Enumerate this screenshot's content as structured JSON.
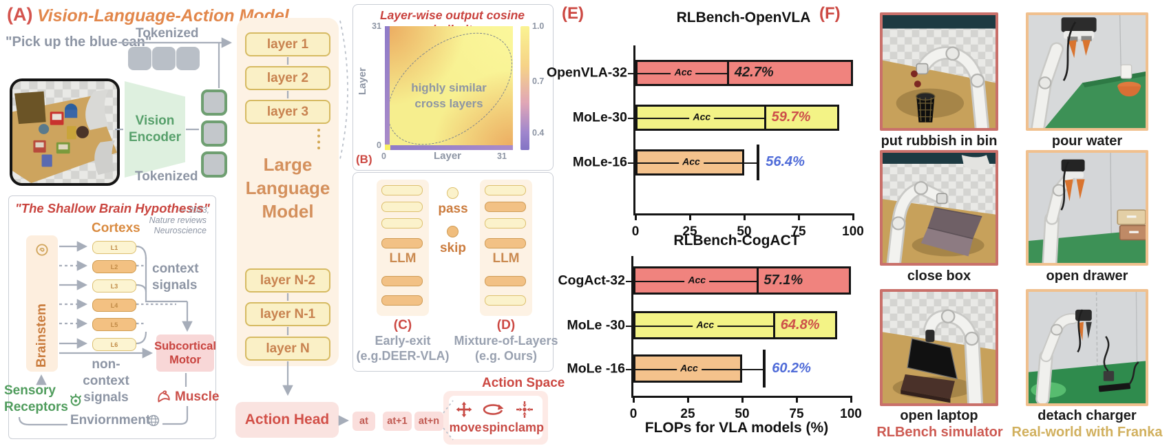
{
  "panelA": {
    "tag": "(A)",
    "title": "Vision-Language-Action Model",
    "instruction": "\"Pick up the blue can\"",
    "tokenized_text": "Tokenized",
    "tokenized_vision": "Tokenized",
    "vision_encoder": "Vision\nEncoder",
    "shallow_brain": {
      "title": "\"The Shallow Brain Hypothesis\"",
      "citation_line1": "--- 2023,",
      "citation_line2": "Nature reviews",
      "citation_line3": "Neuroscience",
      "cortexs_label": "Cortexs",
      "brainstem_label": "Brainstem",
      "cortex_layers": [
        {
          "label": "L1",
          "type": "light"
        },
        {
          "label": "L2",
          "type": "dark"
        },
        {
          "label": "L3",
          "type": "light"
        },
        {
          "label": "L4",
          "type": "dark"
        },
        {
          "label": "L5",
          "type": "dark"
        },
        {
          "label": "L6",
          "type": "light"
        }
      ],
      "context_label": "context\nsignals",
      "subcortical_label": "Subcortical\nMotor",
      "non_context_label": "non-context\nsignals",
      "sensory_label": "Sensory\nReceptors",
      "muscle_label": "Muscle",
      "environment_label": "Enviornment"
    }
  },
  "llm": {
    "layers_top": [
      "layer 1",
      "layer 2",
      "layer 3"
    ],
    "title": "Large\nLanguage\nModel",
    "layers_bottom": [
      "layer N-2",
      "layer N-1",
      "layer N"
    ],
    "action_head": "Action Head",
    "tokens": [
      "at",
      "at+1",
      "at+n"
    ]
  },
  "panelB_tag": "(B)",
  "panelCD": {
    "legend": {
      "pass": "pass",
      "skip": "skip"
    },
    "llm_label": "LLM",
    "c": {
      "tag": "(C)",
      "name": "Early-exit",
      "example": "(e.g.DEER-VLA)",
      "stack_top": [
        "pass",
        "pass",
        "pass",
        "skip"
      ],
      "stack_bottom": [
        "skip",
        "skip"
      ]
    },
    "d": {
      "tag": "(D)",
      "name": "Mixture-of-Layers",
      "example": "(e.g. Ours)",
      "stack_top": [
        "pass",
        "skip",
        "pass",
        "skip"
      ],
      "stack_bottom": [
        "skip",
        "pass"
      ]
    }
  },
  "action_space": {
    "title": "Action Space",
    "items": [
      {
        "icon": "move-icon",
        "label": "move"
      },
      {
        "icon": "spin-icon",
        "label": "spin"
      },
      {
        "icon": "clamp-icon",
        "label": "clamp"
      }
    ]
  },
  "panelE_tag": "(E)",
  "chart_data": [
    {
      "type": "bar",
      "title": "RLBench-OpenVLA",
      "acc_label": "Acc",
      "categories": [
        "OpenVLA-32",
        "MoLe-30",
        "MoLe-16"
      ],
      "series": [
        {
          "name": "FLOPs for VLA models (%)",
          "values": [
            100,
            93.75,
            50
          ]
        },
        {
          "name": "Accuracy (%)",
          "values": [
            42.7,
            59.7,
            56.4
          ]
        }
      ],
      "value_labels": [
        "42.7%",
        "59.7%",
        "56.4%"
      ],
      "value_colors": [
        "#1d1d1d",
        "#cd4f4a",
        "#4f6bd8"
      ],
      "bar_colors": [
        "#f0837e",
        "#f3f386",
        "#f4c28c"
      ],
      "xlabel": "",
      "xticks": [
        0,
        25,
        50,
        75,
        100
      ],
      "xlim": [
        0,
        100
      ],
      "legend_position": "none",
      "grid": false
    },
    {
      "type": "bar",
      "title": "RLBench-CogACT",
      "acc_label": "Acc",
      "categories": [
        "CogAct-32",
        "MoLe -30",
        "MoLe -16"
      ],
      "series": [
        {
          "name": "FLOPs for VLA models (%)",
          "values": [
            100,
            93.75,
            50
          ]
        },
        {
          "name": "Accuracy (%)",
          "values": [
            57.1,
            64.8,
            60.2
          ]
        }
      ],
      "value_labels": [
        "57.1%",
        "64.8%",
        "60.2%"
      ],
      "value_colors": [
        "#1d1d1d",
        "#cd4f4a",
        "#4f6bd8"
      ],
      "bar_colors": [
        "#f0837e",
        "#f3f386",
        "#f4c28c"
      ],
      "xlabel": "FLOPs for VLA models (%)",
      "xticks": [
        0,
        25,
        50,
        75,
        100
      ],
      "xlim": [
        0,
        100
      ],
      "legend_position": "none",
      "grid": false
    },
    {
      "type": "heatmap",
      "title": "Layer-wise output cosine similarity",
      "xlabel": "Layer",
      "ylabel": "Layer",
      "x_ticks": [
        "0",
        "31"
      ],
      "y_ticks": [
        "0",
        "31"
      ],
      "xlim": [
        0,
        31
      ],
      "ylim": [
        0,
        31
      ],
      "colorbar_ticks": [
        "1.0",
        "0.7",
        "0.4"
      ],
      "annotation": "highly similar\ncross layers",
      "note": "similarity near 1.0 (yellow) across middle layers; low (purple, ~0.4) along layer-0 row and column"
    }
  ],
  "panelF": {
    "tag": "(F)",
    "sim_column": {
      "caption": "RLBench simulator",
      "caption_color": "#cd5a52",
      "border_color": "#c9706a",
      "items": [
        "put rubbish in bin",
        "close box",
        "open laptop"
      ]
    },
    "real_column": {
      "caption": "Real-world with Franka",
      "caption_color": "#d1b05e",
      "border_color": "#f0c08e",
      "items": [
        "pour water",
        "open drawer",
        "detach charger"
      ]
    }
  }
}
